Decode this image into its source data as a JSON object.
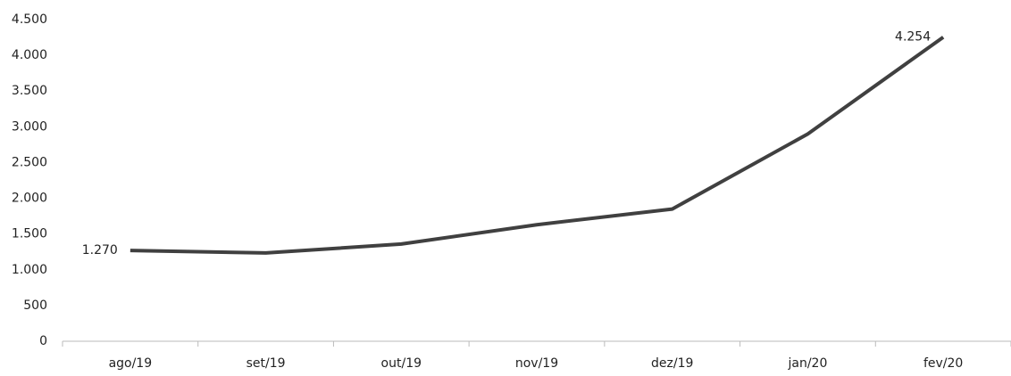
{
  "chart_data": {
    "type": "line",
    "categories": [
      "ago/19",
      "set/19",
      "out/19",
      "nov/19",
      "dez/19",
      "jan/20",
      "fev/20"
    ],
    "series": [
      {
        "color": "#404040",
        "values": [
          1270,
          1235,
          1360,
          1630,
          1850,
          2900,
          4254
        ],
        "value_labels": [
          "1.270",
          null,
          null,
          null,
          null,
          null,
          "4.254"
        ]
      }
    ],
    "ylim": [
      0,
      4500
    ],
    "yticks": [
      0,
      500,
      {
        "value": 1000,
        "label": "1.000"
      },
      {
        "value": 1500,
        "label": "1.500"
      },
      {
        "value": 2000,
        "label": "2.000"
      },
      {
        "value": 2500,
        "label": "2.500"
      },
      {
        "value": 3000,
        "label": "3.000"
      },
      {
        "value": 3500,
        "label": "3.500"
      },
      {
        "value": 4000,
        "label": "4.000"
      },
      {
        "value": 4500,
        "label": "4.500"
      }
    ]
  }
}
